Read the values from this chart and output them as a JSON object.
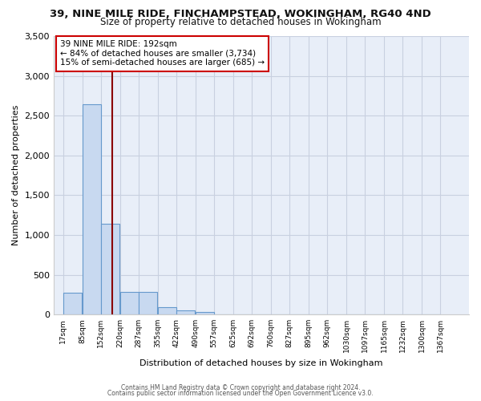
{
  "title": "39, NINE MILE RIDE, FINCHAMPSTEAD, WOKINGHAM, RG40 4ND",
  "subtitle": "Size of property relative to detached houses in Wokingham",
  "xlabel": "Distribution of detached houses by size in Wokingham",
  "ylabel": "Number of detached properties",
  "bar_color": "#c8d9f0",
  "bar_edge_color": "#6699cc",
  "bin_edges": [
    17,
    85,
    152,
    220,
    287,
    355,
    422,
    490,
    557,
    625,
    692,
    760,
    827,
    895,
    962,
    1030,
    1097,
    1165,
    1232,
    1300,
    1367
  ],
  "bar_heights": [
    270,
    2640,
    1140,
    280,
    280,
    90,
    55,
    32,
    0,
    0,
    0,
    0,
    0,
    0,
    0,
    0,
    0,
    0,
    0,
    0
  ],
  "tick_labels": [
    "17sqm",
    "85sqm",
    "152sqm",
    "220sqm",
    "287sqm",
    "355sqm",
    "422sqm",
    "490sqm",
    "557sqm",
    "625sqm",
    "692sqm",
    "760sqm",
    "827sqm",
    "895sqm",
    "962sqm",
    "1030sqm",
    "1097sqm",
    "1165sqm",
    "1232sqm",
    "1300sqm",
    "1367sqm"
  ],
  "ylim": [
    0,
    3500
  ],
  "yticks": [
    0,
    500,
    1000,
    1500,
    2000,
    2500,
    3000,
    3500
  ],
  "red_line_x": 192,
  "annotation_title": "39 NINE MILE RIDE: 192sqm",
  "annotation_line1": "← 84% of detached houses are smaller (3,734)",
  "annotation_line2": "15% of semi-detached houses are larger (685) →",
  "plot_bg_color": "#e8eef8",
  "grid_color": "#d0d8e8",
  "fig_bg_color": "#ffffff",
  "footer_line1": "Contains HM Land Registry data © Crown copyright and database right 2024.",
  "footer_line2": "Contains public sector information licensed under the Open Government Licence v3.0."
}
